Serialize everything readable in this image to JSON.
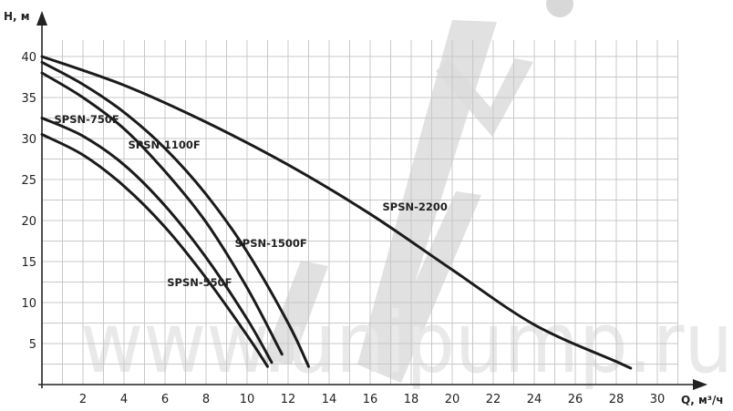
{
  "chart_data": {
    "type": "line",
    "xlabel": "Q, м³/ч",
    "ylabel": "H, м",
    "xlim": [
      0,
      31
    ],
    "ylim": [
      0,
      42
    ],
    "x_ticks": [
      2,
      4,
      6,
      8,
      10,
      12,
      14,
      16,
      18,
      20,
      22,
      24,
      26,
      28,
      30
    ],
    "y_ticks": [
      5,
      10,
      15,
      20,
      25,
      30,
      35,
      40
    ],
    "grid": true,
    "watermark": "www.unipump.ru",
    "colors": {
      "line": "#1a1a1a",
      "grid": "#c8c8c8",
      "axis": "#222222",
      "watermark": "#e9e9e9",
      "logo": "#d8d8d8"
    },
    "series": [
      {
        "name": "SPSN-550F",
        "label": "SPSN-550F",
        "label_at": [
          6.1,
          12.0
        ],
        "x": [
          0,
          2,
          4,
          6,
          8,
          10,
          11
        ],
        "y": [
          30.5,
          28.0,
          24.2,
          19.2,
          13.0,
          6.0,
          2.2
        ]
      },
      {
        "name": "SPSN-750F",
        "label": "SPSN-750F",
        "label_at": [
          0.6,
          31.9
        ],
        "x": [
          0,
          2,
          4,
          6,
          8,
          10,
          11.2
        ],
        "y": [
          32.5,
          30.3,
          26.8,
          21.8,
          15.5,
          8.0,
          2.7
        ]
      },
      {
        "name": "SPSN-1100F",
        "label": "SPSN-1100F",
        "label_at": [
          4.2,
          28.8
        ],
        "x": [
          0,
          2,
          4,
          6,
          8,
          10,
          11.7
        ],
        "y": [
          38.0,
          35.0,
          31.2,
          26.0,
          19.8,
          11.8,
          3.7
        ]
      },
      {
        "name": "SPSN-1500F",
        "label": "SPSN-1500F",
        "label_at": [
          9.4,
          16.8
        ],
        "x": [
          0,
          2,
          4,
          6,
          8,
          10,
          12,
          13
        ],
        "y": [
          39.3,
          36.6,
          33.2,
          28.8,
          23.2,
          16.2,
          7.5,
          2.2
        ]
      },
      {
        "name": "SPSN-2200",
        "label": "SPSN-2200",
        "label_at": [
          16.6,
          21.2
        ],
        "x": [
          0,
          4,
          8,
          12,
          16,
          20,
          24,
          28,
          28.7
        ],
        "y": [
          40.0,
          36.5,
          32.0,
          26.8,
          20.8,
          14.0,
          7.3,
          2.8,
          2.0
        ]
      }
    ]
  }
}
